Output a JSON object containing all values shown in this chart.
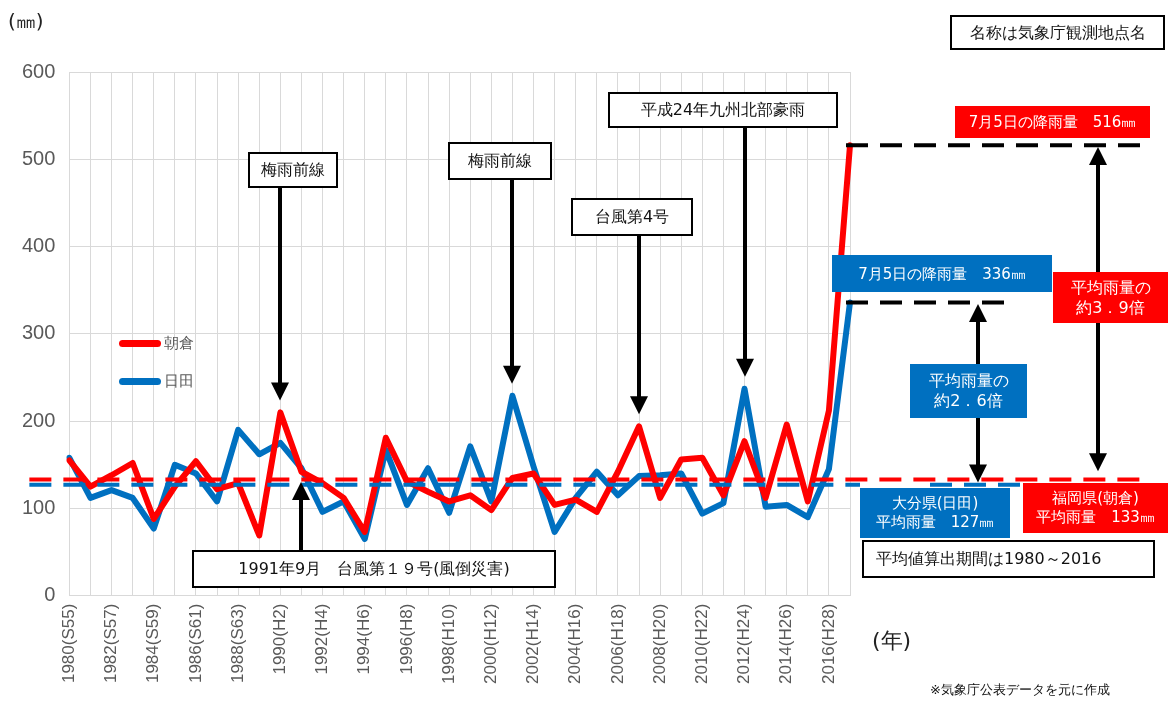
{
  "chart_data": {
    "type": "line",
    "ylabel": "(㎜)",
    "xlabel": "(年)",
    "categories": [
      "1980(S55)",
      null,
      "1982(S57)",
      null,
      "1984(S59)",
      null,
      "1986(S61)",
      null,
      "1988(S63)",
      null,
      "1990(H2)",
      null,
      "1992(H4)",
      null,
      "1994(H6)",
      null,
      "1996(H8)",
      null,
      "1998(H10)",
      null,
      "2000(H12)",
      null,
      "2002(H14)",
      null,
      "2004(H16)",
      null,
      "2006(H18)",
      null,
      "2008(H20)",
      null,
      "2010(H22)",
      null,
      "2012(H24)",
      null,
      "2014(H26)",
      null,
      "2016(H28)",
      null
    ],
    "series": [
      {
        "name": "朝倉",
        "color": "#ff0000",
        "values": [
          155,
          125,
          138,
          152,
          88,
          125,
          154,
          122,
          129,
          69,
          210,
          142,
          129,
          112,
          73,
          181,
          131,
          119,
          108,
          115,
          98,
          135,
          140,
          104,
          110,
          96,
          142,
          194,
          112,
          156,
          158,
          115,
          177,
          112,
          196,
          108,
          212,
          516
        ]
      },
      {
        "name": "日田",
        "color": "#0070c0",
        "values": [
          158,
          112,
          121,
          112,
          77,
          150,
          140,
          108,
          190,
          162,
          175,
          146,
          96,
          108,
          65,
          167,
          104,
          146,
          95,
          171,
          108,
          229,
          148,
          73,
          112,
          142,
          115,
          137,
          138,
          140,
          94,
          106,
          237,
          102,
          104,
          90,
          145,
          336
        ]
      }
    ],
    "ylim": [
      0,
      600
    ],
    "yticks": [
      0,
      100,
      200,
      300,
      400,
      500,
      600
    ],
    "grid": true,
    "legend": "left",
    "marker": "none",
    "line_style": "solid",
    "ref_lines": [
      {
        "axis": "y",
        "value": 133,
        "label": "福岡県(朝倉)\n平均雨量　133㎜",
        "color": "#ff0000",
        "line_style": "dashed"
      },
      {
        "axis": "y",
        "value": 127,
        "label": "大分県(日田)\n平均雨量　127㎜",
        "color": "#0070c0",
        "line_style": "dashed"
      },
      {
        "axis": "y",
        "value": 516,
        "label": "7月5日の降雨量　516㎜",
        "color": "#000000",
        "line_style": "dashed"
      },
      {
        "axis": "y",
        "value": 336,
        "label": "7月5日の降雨量　336㎜",
        "color": "#000000",
        "line_style": "dashed"
      }
    ],
    "annotations": [
      "梅雨前線",
      "梅雨前線",
      "台風第4号",
      "平成24年九州北部豪雨",
      "1991年9月　台風第１９号(風倒災害)",
      "名称は気象庁観測地点名",
      "平均雨量の約2．6倍",
      "平均雨量の約3．9倍",
      "平均値算出期間は1980～2016",
      "※気象庁公表データを元に作成"
    ]
  }
}
